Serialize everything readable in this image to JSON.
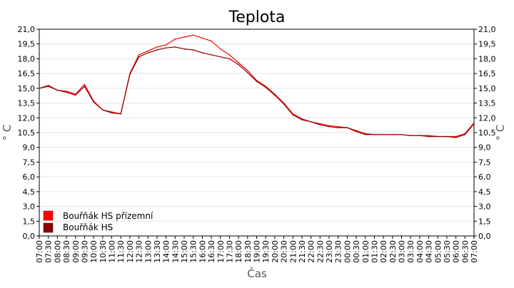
{
  "chart_data": {
    "type": "line",
    "title": "Teplota",
    "xlabel": "Čas",
    "ylabel": "° C",
    "ylim": [
      0,
      21
    ],
    "y_ticks": [
      "0,0",
      "1,5",
      "3,0",
      "4,5",
      "6,0",
      "7,5",
      "9,0",
      "10,5",
      "12,0",
      "13,5",
      "15,0",
      "16,5",
      "18,0",
      "19,5",
      "21,0"
    ],
    "x_ticks": [
      "07:00",
      "07:30",
      "08:00",
      "08:30",
      "09:00",
      "09:30",
      "10:00",
      "10:30",
      "11:00",
      "11:30",
      "12:00",
      "12:30",
      "13:00",
      "13:30",
      "14:00",
      "14:30",
      "15:00",
      "15:30",
      "16:00",
      "16:30",
      "17:00",
      "17:30",
      "18:00",
      "18:30",
      "19:00",
      "19:30",
      "20:00",
      "20:30",
      "21:00",
      "21:30",
      "22:00",
      "22:30",
      "23:00",
      "23:30",
      "00:00",
      "00:30",
      "01:00",
      "01:30",
      "02:00",
      "02:30",
      "03:00",
      "03:30",
      "04:00",
      "04:30",
      "05:00",
      "05:30",
      "06:00",
      "06:30",
      "07:00"
    ],
    "grid": true,
    "legend_position": "bottom-left",
    "x_hours": [
      0,
      0.5,
      1,
      1.5,
      2,
      2.5,
      3,
      3.5,
      4,
      4.5,
      5,
      5.5,
      6,
      6.5,
      7,
      7.5,
      8,
      8.5,
      9,
      9.5,
      10,
      10.5,
      11,
      11.5,
      12,
      12.5,
      13,
      13.5,
      14,
      14.5,
      15,
      15.5,
      16,
      16.5,
      17,
      17.5,
      18,
      18.5,
      19,
      19.5,
      20,
      20.5,
      21,
      21.5,
      22,
      22.5,
      23,
      23.5,
      24
    ],
    "series": [
      {
        "name": "Bouřňák HS přízemní",
        "color": "#ff0000",
        "values": [
          15.0,
          15.3,
          14.8,
          14.7,
          14.4,
          15.4,
          13.7,
          12.8,
          12.6,
          12.4,
          16.5,
          18.4,
          18.8,
          19.2,
          19.4,
          20.0,
          20.2,
          20.4,
          20.1,
          19.8,
          19.0,
          18.4,
          17.6,
          16.8,
          15.8,
          15.2,
          14.4,
          13.5,
          12.4,
          11.9,
          11.6,
          11.4,
          11.2,
          11.1,
          11.0,
          10.7,
          10.4,
          10.3,
          10.3,
          10.3,
          10.3,
          10.2,
          10.2,
          10.2,
          10.1,
          10.1,
          10.1,
          10.4,
          11.5
        ]
      },
      {
        "name": "Bouřňák HS",
        "color": "#8b0000",
        "values": [
          15.0,
          15.2,
          14.8,
          14.6,
          14.3,
          15.2,
          13.6,
          12.8,
          12.5,
          12.4,
          16.4,
          18.2,
          18.6,
          18.9,
          19.1,
          19.2,
          19.0,
          18.9,
          18.6,
          18.4,
          18.2,
          18.0,
          17.4,
          16.6,
          15.7,
          15.1,
          14.3,
          13.4,
          12.3,
          11.8,
          11.6,
          11.3,
          11.1,
          11.0,
          11.0,
          10.6,
          10.3,
          10.3,
          10.3,
          10.3,
          10.3,
          10.2,
          10.2,
          10.1,
          10.1,
          10.1,
          10.0,
          10.3,
          11.4
        ]
      }
    ]
  }
}
